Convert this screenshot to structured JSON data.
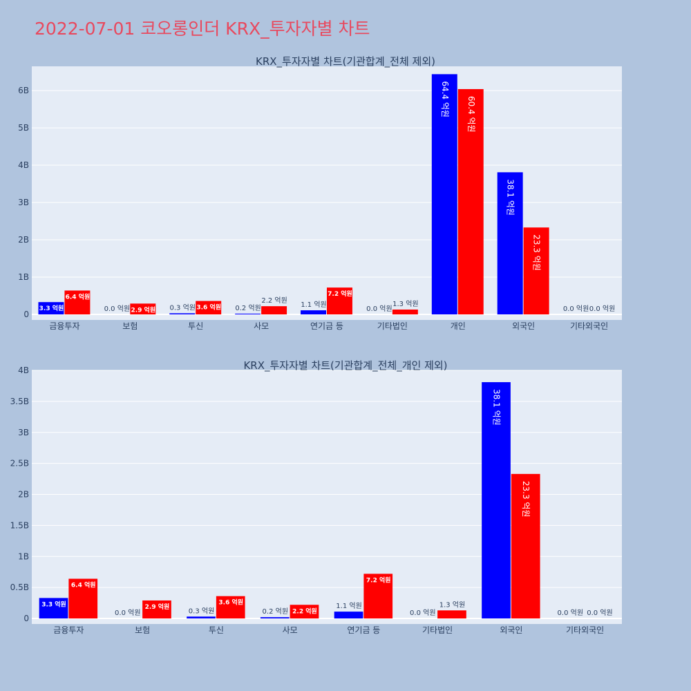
{
  "page": {
    "title": "2022-07-01 코오롱인더 KRX_투자자별 차트"
  },
  "colors": {
    "background": "#b0c4de",
    "plot_bg": "#e5ecf6",
    "grid": "#ffffff",
    "buy": "#0000ff",
    "sell": "#ff0000",
    "title": "#e8495e",
    "text": "#2a3f5f"
  },
  "chart_data": [
    {
      "type": "bar",
      "title": "KRX_투자자별 차트(기관합계_전체 제외)",
      "categories": [
        "금융투자",
        "보험",
        "투신",
        "사모",
        "연기금 등",
        "기타법인",
        "개인",
        "외국인",
        "기타외국인"
      ],
      "series": [
        {
          "color": "#0000ff",
          "values": [
            330000000,
            0,
            30000000,
            20000000,
            110000000,
            0,
            6440000000,
            3810000000,
            0
          ],
          "labels": [
            "3.3 억원",
            "0.0 억원",
            "0.3 억원",
            "0.2 억원",
            "1.1 억원",
            "0.0 억원",
            "64.4 억원",
            "38.1 억원",
            "0.0 억원"
          ]
        },
        {
          "color": "#ff0000",
          "values": [
            640000000,
            290000000,
            360000000,
            220000000,
            720000000,
            130000000,
            6040000000,
            2330000000,
            0
          ],
          "labels": [
            "6.4 억원",
            "2.9 억원",
            "3.6 억원",
            "2.2 억원",
            "7.2 억원",
            "1.3 억원",
            "60.4 억원",
            "23.3 억원",
            "0.0 억원"
          ]
        }
      ],
      "ylim": [
        0,
        6650000000
      ],
      "yticks": [
        0,
        1000000000,
        2000000000,
        3000000000,
        4000000000,
        5000000000,
        6000000000
      ],
      "ytick_labels": [
        "0",
        "1B",
        "2B",
        "3B",
        "4B",
        "5B",
        "6B"
      ],
      "grid": true
    },
    {
      "type": "bar",
      "title": "KRX_투자자별 차트(기관합계_전체_개인 제외)",
      "categories": [
        "금융투자",
        "보험",
        "투신",
        "사모",
        "연기금 등",
        "기타법인",
        "외국인",
        "기타외국인"
      ],
      "series": [
        {
          "color": "#0000ff",
          "values": [
            330000000,
            0,
            30000000,
            20000000,
            110000000,
            0,
            3810000000,
            0
          ],
          "labels": [
            "3.3 억원",
            "0.0 억원",
            "0.3 억원",
            "0.2 억원",
            "1.1 억원",
            "0.0 억원",
            "38.1 억원",
            "0.0 억원"
          ]
        },
        {
          "color": "#ff0000",
          "values": [
            640000000,
            290000000,
            360000000,
            220000000,
            720000000,
            130000000,
            2330000000,
            0
          ],
          "labels": [
            "6.4 억원",
            "2.9 억원",
            "3.6 억원",
            "2.2 억원",
            "7.2 억원",
            "1.3 억원",
            "23.3 억원",
            "0.0 억원"
          ]
        }
      ],
      "ylim": [
        0,
        4000000000
      ],
      "yticks": [
        0,
        500000000,
        1000000000,
        1500000000,
        2000000000,
        2500000000,
        3000000000,
        3500000000,
        4000000000
      ],
      "ytick_labels": [
        "0",
        "0.5B",
        "1B",
        "1.5B",
        "2B",
        "2.5B",
        "3B",
        "3.5B",
        "4B"
      ],
      "grid": true
    }
  ]
}
